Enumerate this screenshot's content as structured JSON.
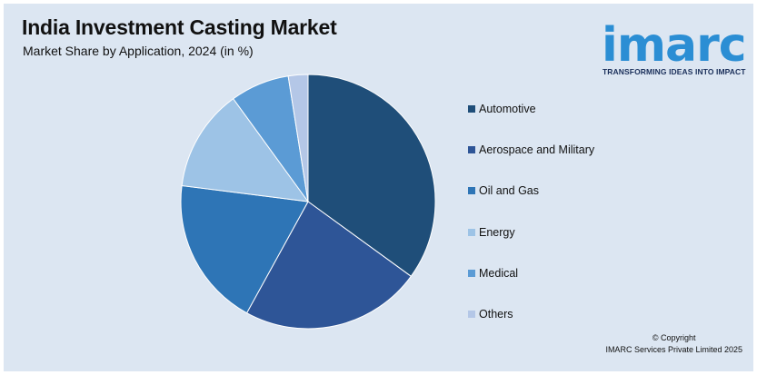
{
  "header": {
    "title": "India Investment Casting Market",
    "subtitle": "Market Share by Application, 2024 (in %)"
  },
  "logo": {
    "wordmark": "imarc",
    "tagline": "TRANSFORMING IDEAS INTO IMPACT"
  },
  "chart_data": {
    "type": "pie",
    "title": "India Investment Casting Market",
    "subtitle": "Market Share by Application, 2024 (in %)",
    "legend_position": "right",
    "start_angle": "12 o'clock",
    "direction": "clockwise",
    "categories": [
      "Automotive",
      "Aerospace and Military",
      "Oil and Gas",
      "Energy",
      "Medical",
      "Others"
    ],
    "values": [
      35,
      23,
      19,
      13,
      7.5,
      2.5
    ],
    "colors": [
      "#1f4e79",
      "#2e5597",
      "#2e75b6",
      "#9dc3e6",
      "#5b9bd5",
      "#b4c7e7"
    ]
  },
  "footer": {
    "copyright_line1": "© Copyright",
    "copyright_line2": "IMARC Services Private Limited 2025"
  }
}
